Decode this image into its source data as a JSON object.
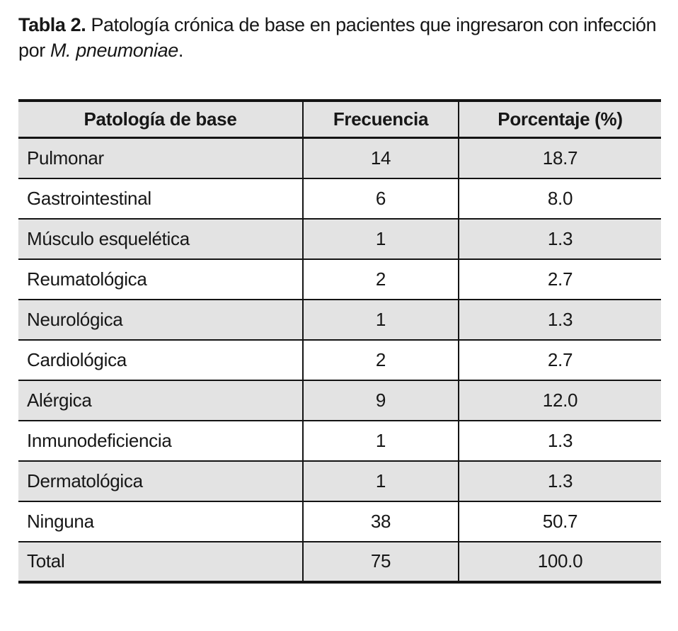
{
  "caption": {
    "label": "Tabla 2.",
    "text_after_label": " Patología crónica de base en pacientes que ingresaron con infección por ",
    "italic_text": "M. pneumoniae",
    "suffix": "."
  },
  "table": {
    "columns": [
      {
        "key": "pathology",
        "label": "Patología de base"
      },
      {
        "key": "frequency",
        "label": "Frecuencia"
      },
      {
        "key": "percentage",
        "label": "Porcentaje (%)"
      }
    ],
    "rows": [
      {
        "pathology": "Pulmonar",
        "frequency": "14",
        "percentage": "18.7"
      },
      {
        "pathology": "Gastrointestinal",
        "frequency": "6",
        "percentage": "8.0"
      },
      {
        "pathology": "Músculo esquelética",
        "frequency": "1",
        "percentage": "1.3"
      },
      {
        "pathology": "Reumatológica",
        "frequency": "2",
        "percentage": "2.7"
      },
      {
        "pathology": "Neurológica",
        "frequency": "1",
        "percentage": "1.3"
      },
      {
        "pathology": "Cardiológica",
        "frequency": "2",
        "percentage": "2.7"
      },
      {
        "pathology": "Alérgica",
        "frequency": "9",
        "percentage": "12.0"
      },
      {
        "pathology": "Inmunodeficiencia",
        "frequency": "1",
        "percentage": "1.3"
      },
      {
        "pathology": "Dermatológica",
        "frequency": "1",
        "percentage": "1.3"
      },
      {
        "pathology": "Ninguna",
        "frequency": "38",
        "percentage": "50.7"
      },
      {
        "pathology": "Total",
        "frequency": "75",
        "percentage": "100.0"
      }
    ]
  },
  "colors": {
    "header_bg": "#e3e3e3",
    "row_alt_bg": "#e3e3e3",
    "border_color": "#141414",
    "text_color": "#171717",
    "page_bg": "#ffffff"
  },
  "chart_data": {
    "type": "table",
    "title": "Tabla 2. Patología crónica de base en pacientes que ingresaron con infección por M. pneumoniae.",
    "columns": [
      "Patología de base",
      "Frecuencia",
      "Porcentaje (%)"
    ],
    "rows": [
      [
        "Pulmonar",
        14,
        18.7
      ],
      [
        "Gastrointestinal",
        6,
        8.0
      ],
      [
        "Músculo esquelética",
        1,
        1.3
      ],
      [
        "Reumatológica",
        2,
        2.7
      ],
      [
        "Neurológica",
        1,
        1.3
      ],
      [
        "Cardiológica",
        2,
        2.7
      ],
      [
        "Alérgica",
        9,
        12.0
      ],
      [
        "Inmunodeficiencia",
        1,
        1.3
      ],
      [
        "Dermatológica",
        1,
        1.3
      ],
      [
        "Ninguna",
        38,
        50.7
      ],
      [
        "Total",
        75,
        100.0
      ]
    ]
  }
}
